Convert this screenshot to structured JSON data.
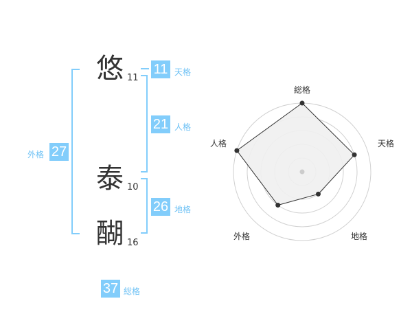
{
  "name": {
    "chars": [
      {
        "char": "悠",
        "strokes": "11"
      },
      {
        "char": "泰",
        "strokes": "10"
      },
      {
        "char": "醐",
        "strokes": "16"
      }
    ]
  },
  "fortunes": {
    "tenkaku": {
      "label": "天格",
      "value": "11"
    },
    "jinkaku": {
      "label": "人格",
      "value": "21"
    },
    "chikaku": {
      "label": "地格",
      "value": "26"
    },
    "gaikaku": {
      "label": "外格",
      "value": "27"
    },
    "soukaku": {
      "label": "総格",
      "value": "37"
    }
  },
  "colors": {
    "accent": "#82cdfb",
    "label": "#6fc2f5",
    "polygon_fill": "#f0f0f0",
    "ring": "#d0d0d0"
  },
  "chart_data": {
    "type": "radar",
    "axes": [
      "総格",
      "天格",
      "地格",
      "外格",
      "人格"
    ],
    "values": [
      5,
      4,
      2,
      3,
      5
    ],
    "range": [
      0,
      5
    ],
    "rings": 5
  }
}
